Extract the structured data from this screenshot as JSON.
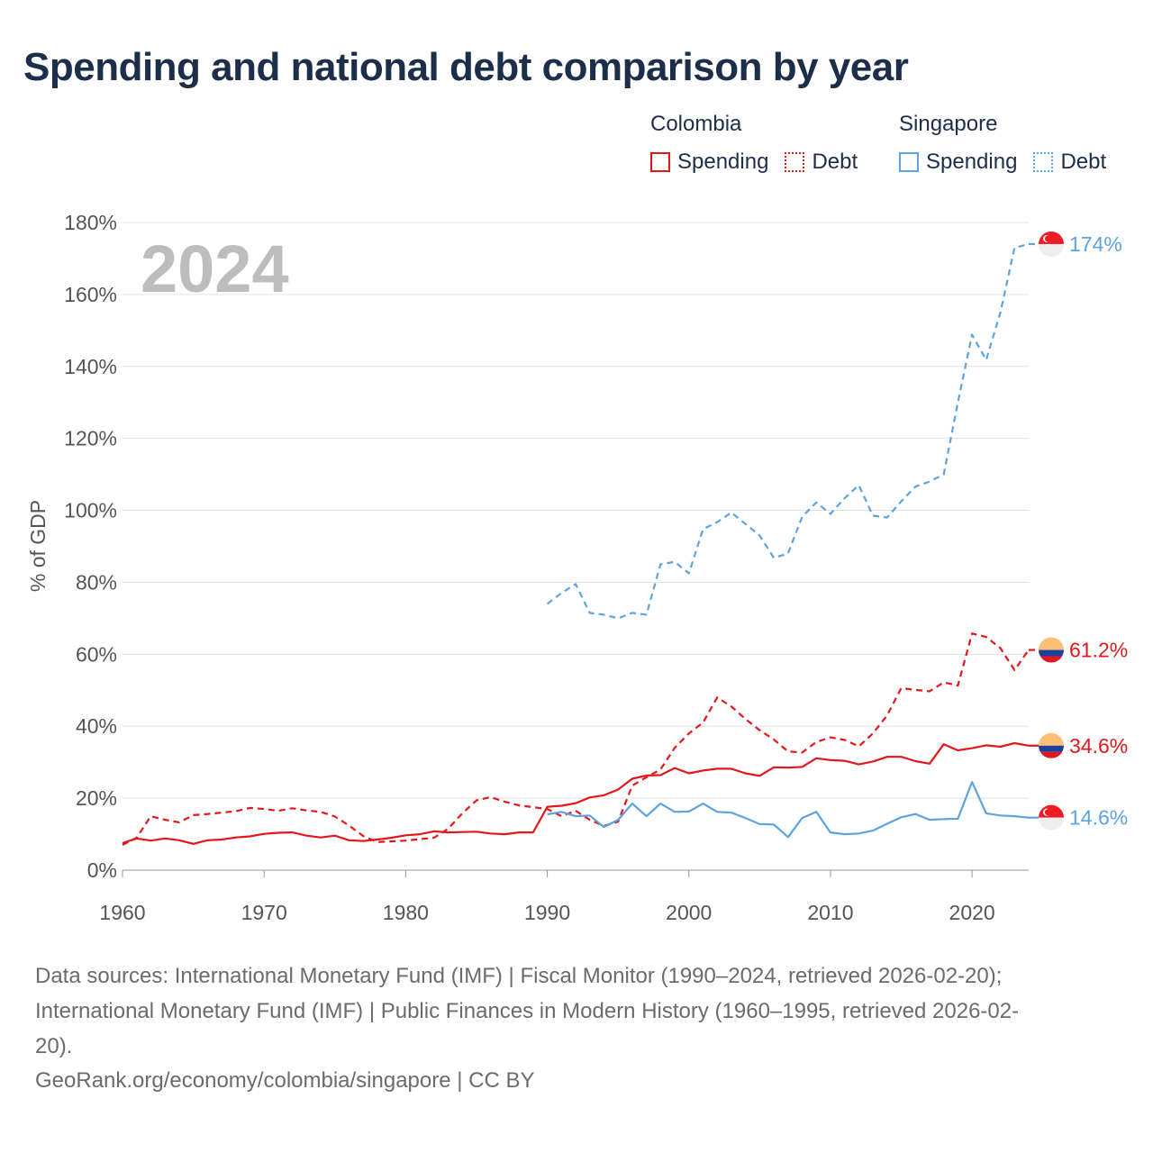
{
  "title": "Spending and national debt comparison by year",
  "legend": {
    "groups": [
      {
        "name": "Colombia",
        "color": "#e3161b",
        "items": [
          {
            "label": "Spending",
            "style": "solid"
          },
          {
            "label": "Debt",
            "style": "dotted"
          }
        ]
      },
      {
        "name": "Singapore",
        "color": "#5da3e0",
        "items": [
          {
            "label": "Spending",
            "style": "solid"
          },
          {
            "label": "Debt",
            "style": "dotted"
          }
        ]
      }
    ]
  },
  "year_label": "2024",
  "footer": {
    "line1": "Data sources: International Monetary Fund (IMF) | Fiscal Monitor (1990–2024, retrieved 2026-02-20);",
    "line2": "International Monetary Fund (IMF) | Public Finances in Modern History (1960–1995, retrieved 2026-02-",
    "line3": "20).",
    "line4": "GeoRank.org/economy/colombia/singapore | CC BY"
  },
  "chart_data": {
    "type": "line",
    "title": "Spending and national debt comparison by year",
    "xlabel": "",
    "ylabel": "% of GDP",
    "xlim": [
      1960,
      2024
    ],
    "ylim": [
      0,
      180
    ],
    "x_ticks": [
      1960,
      1970,
      1980,
      1990,
      2000,
      2010,
      2020
    ],
    "y_ticks": [
      0,
      20,
      40,
      60,
      80,
      100,
      120,
      140,
      160,
      180
    ],
    "y_tick_labels": [
      "0%",
      "20%",
      "40%",
      "60%",
      "80%",
      "100%",
      "120%",
      "140%",
      "160%",
      "180%"
    ],
    "grid": true,
    "series": [
      {
        "name": "Colombia Spending",
        "country": "Colombia",
        "color": "#e3161b",
        "dash": "solid",
        "end_label": "34.6%",
        "flag": "colombia",
        "x": [
          1960,
          1961,
          1962,
          1963,
          1964,
          1965,
          1966,
          1967,
          1968,
          1969,
          1970,
          1971,
          1972,
          1973,
          1974,
          1975,
          1976,
          1977,
          1978,
          1979,
          1980,
          1981,
          1982,
          1983,
          1984,
          1985,
          1986,
          1987,
          1988,
          1989,
          1990,
          1991,
          1992,
          1993,
          1994,
          1995,
          1996,
          1997,
          1998,
          1999,
          2000,
          2001,
          2002,
          2003,
          2004,
          2005,
          2006,
          2007,
          2008,
          2009,
          2010,
          2011,
          2012,
          2013,
          2014,
          2015,
          2016,
          2017,
          2018,
          2019,
          2020,
          2021,
          2022,
          2023,
          2024
        ],
        "values": [
          7.5,
          8.8,
          8.2,
          8.8,
          8.3,
          7.3,
          8.3,
          8.5,
          9.1,
          9.4,
          10.1,
          10.4,
          10.5,
          9.6,
          9.1,
          9.6,
          8.3,
          8.1,
          8.5,
          9.0,
          9.7,
          10.0,
          10.8,
          10.5,
          10.6,
          10.7,
          10.2,
          10.0,
          10.5,
          10.5,
          17.6,
          17.9,
          18.6,
          20.2,
          20.8,
          22.4,
          25.4,
          26.3,
          26.4,
          28.4,
          26.9,
          27.7,
          28.2,
          28.2,
          26.9,
          26.2,
          28.6,
          28.5,
          28.7,
          31.1,
          30.6,
          30.4,
          29.4,
          30.2,
          31.5,
          31.5,
          30.3,
          29.6,
          35.0,
          33.3,
          33.9,
          34.7,
          34.3,
          35.3,
          34.6
        ]
      },
      {
        "name": "Colombia Debt",
        "country": "Colombia",
        "color": "#e3161b",
        "dash": "dashed",
        "end_label": "61.2%",
        "flag": "colombia",
        "x": [
          1960,
          1961,
          1962,
          1963,
          1964,
          1965,
          1966,
          1967,
          1968,
          1969,
          1970,
          1971,
          1972,
          1973,
          1974,
          1975,
          1976,
          1977,
          1978,
          1979,
          1980,
          1981,
          1982,
          1983,
          1984,
          1985,
          1986,
          1987,
          1988,
          1989,
          1990,
          1991,
          1992,
          1993,
          1994,
          1995,
          1996,
          1997,
          1998,
          1999,
          2000,
          2001,
          2002,
          2003,
          2004,
          2005,
          2006,
          2007,
          2008,
          2009,
          2010,
          2011,
          2012,
          2013,
          2014,
          2015,
          2016,
          2017,
          2018,
          2019,
          2020,
          2021,
          2022,
          2023,
          2024
        ],
        "values": [
          7.0,
          9.0,
          15.0,
          14.0,
          13.3,
          15.3,
          15.6,
          16.0,
          16.4,
          17.3,
          17.0,
          16.5,
          17.2,
          16.6,
          16.2,
          14.9,
          12.4,
          9.5,
          7.8,
          8.0,
          8.2,
          8.6,
          9.0,
          11.5,
          15.8,
          19.4,
          20.3,
          19.0,
          18.0,
          17.5,
          17.0,
          15.0,
          16.5,
          14.0,
          12.3,
          13.5,
          23.5,
          25.8,
          28.0,
          34.0,
          38.0,
          41.0,
          48.0,
          45.5,
          42.0,
          38.9,
          36.3,
          33.0,
          32.7,
          35.6,
          36.9,
          36.2,
          34.4,
          38.0,
          43.0,
          50.6,
          50.1,
          49.7,
          52.2,
          51.3,
          65.8,
          64.8,
          61.7,
          55.6,
          61.2
        ]
      },
      {
        "name": "Singapore Spending",
        "country": "Singapore",
        "color": "#5da3e0",
        "dash": "solid",
        "end_label": "14.6%",
        "flag": "singapore",
        "x": [
          1990,
          1991,
          1992,
          1993,
          1994,
          1995,
          1996,
          1997,
          1998,
          1999,
          2000,
          2001,
          2002,
          2003,
          2004,
          2005,
          2006,
          2007,
          2008,
          2009,
          2010,
          2011,
          2012,
          2013,
          2014,
          2015,
          2016,
          2017,
          2018,
          2019,
          2020,
          2021,
          2022,
          2023,
          2024
        ],
        "values": [
          15.5,
          16.2,
          15.0,
          15.2,
          12.0,
          14.0,
          18.5,
          15.0,
          18.5,
          16.2,
          16.3,
          18.5,
          16.2,
          16.0,
          14.5,
          12.8,
          12.7,
          9.2,
          14.5,
          16.2,
          10.5,
          10.0,
          10.2,
          11.0,
          12.9,
          14.7,
          15.6,
          14.0,
          14.2,
          14.3,
          24.5,
          15.8,
          15.2,
          15.0,
          14.6
        ]
      },
      {
        "name": "Singapore Debt",
        "country": "Singapore",
        "color": "#5da3e0",
        "dash": "dashed",
        "end_label": "174%",
        "flag": "singapore",
        "x": [
          1990,
          1991,
          1992,
          1993,
          1994,
          1995,
          1996,
          1997,
          1998,
          1999,
          2000,
          2001,
          2002,
          2003,
          2004,
          2005,
          2006,
          2007,
          2008,
          2009,
          2010,
          2011,
          2012,
          2013,
          2014,
          2015,
          2016,
          2017,
          2018,
          2019,
          2020,
          2021,
          2022,
          2023,
          2024
        ],
        "values": [
          74.0,
          77.0,
          79.5,
          71.5,
          71.0,
          70.0,
          71.5,
          71.0,
          85.0,
          85.7,
          82.5,
          94.8,
          96.7,
          99.4,
          96.2,
          93.0,
          86.8,
          88.0,
          98.2,
          102.2,
          99.0,
          103.4,
          107.0,
          98.5,
          98.0,
          102.5,
          106.6,
          108.0,
          110.0,
          130.0,
          148.8,
          141.8,
          155.0,
          173.0,
          174.0
        ]
      }
    ]
  }
}
